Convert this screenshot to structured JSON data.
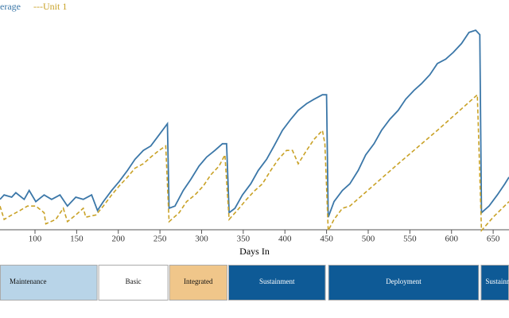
{
  "chart_data": {
    "type": "line",
    "xlabel": "Days In",
    "xlim": [
      58,
      669
    ],
    "xticks": [
      100,
      150,
      200,
      250,
      300,
      350,
      400,
      450,
      500,
      550,
      600,
      650
    ],
    "ylim": [
      0,
      100
    ],
    "series": [
      {
        "name": "erage",
        "color": "#3b77a8",
        "dash": false,
        "x": [
          58,
          63,
          72,
          77,
          87,
          93,
          101,
          111,
          120,
          130,
          139,
          149,
          158,
          168,
          175,
          182,
          192,
          201,
          211,
          220,
          230,
          239,
          249,
          259,
          261,
          268,
          278,
          287,
          297,
          306,
          316,
          325,
          330,
          333,
          340,
          349,
          359,
          368,
          378,
          387,
          397,
          407,
          416,
          426,
          435,
          445,
          450,
          452,
          459,
          469,
          478,
          488,
          497,
          507,
          516,
          526,
          536,
          545,
          555,
          564,
          574,
          583,
          593,
          602,
          612,
          621,
          629,
          634,
          636,
          645,
          655,
          664,
          669
        ],
        "values": [
          14,
          16,
          15,
          17,
          14,
          18,
          13,
          16,
          14,
          16,
          11,
          15,
          14,
          16,
          9,
          13,
          18,
          22,
          27,
          32,
          36,
          38,
          43,
          48,
          10,
          11,
          18,
          23,
          29,
          33,
          36,
          39,
          39,
          8,
          10,
          16,
          21,
          27,
          32,
          38,
          45,
          50,
          54,
          57,
          59,
          61,
          61,
          6,
          13,
          18,
          21,
          27,
          34,
          39,
          45,
          50,
          54,
          59,
          63,
          66,
          70,
          75,
          77,
          80,
          84,
          89,
          90,
          88,
          8,
          11,
          16,
          21,
          24
        ]
      },
      {
        "name": "---Unit 1",
        "color": "#c9a227",
        "dash": true,
        "x": [
          58,
          63,
          72,
          82,
          91,
          101,
          111,
          113,
          125,
          134,
          139,
          149,
          158,
          161,
          173,
          182,
          192,
          201,
          211,
          220,
          230,
          239,
          249,
          257,
          261,
          273,
          282,
          292,
          302,
          311,
          321,
          328,
          333,
          345,
          354,
          364,
          373,
          383,
          392,
          402,
          409,
          416,
          426,
          435,
          445,
          448,
          452,
          459,
          469,
          478,
          536,
          583,
          631,
          636,
          650,
          669
        ],
        "values": [
          11,
          5,
          7,
          9,
          11,
          11,
          8,
          3,
          5,
          10,
          4,
          7,
          10,
          6,
          7,
          11,
          16,
          20,
          24,
          28,
          30,
          33,
          36,
          38,
          4,
          8,
          13,
          16,
          20,
          25,
          29,
          34,
          5,
          10,
          14,
          18,
          21,
          27,
          32,
          36,
          36,
          30,
          36,
          41,
          45,
          39,
          0,
          5,
          10,
          11,
          30,
          45,
          61,
          0,
          6,
          13
        ]
      }
    ],
    "phases": [
      {
        "name": "Maintenance",
        "start": 58,
        "end": 175,
        "color": "#b8d4e8",
        "text": "#111"
      },
      {
        "name": "Basic",
        "start": 176,
        "end": 260,
        "color": "#ffffff",
        "text": "#111"
      },
      {
        "name": "Integrated",
        "start": 261,
        "end": 331,
        "color": "#f0c68a",
        "text": "#111"
      },
      {
        "name": "Sustainment",
        "start": 332,
        "end": 449,
        "color": "#0e5a96",
        "text": "#ffffff"
      },
      {
        "name": "Deployment",
        "start": 452,
        "end": 633,
        "color": "#0e5a96",
        "text": "#ffffff"
      },
      {
        "name": "Sustainment",
        "start": 635,
        "end": 669,
        "color": "#0e5a96",
        "text": "#ffffff"
      }
    ]
  }
}
